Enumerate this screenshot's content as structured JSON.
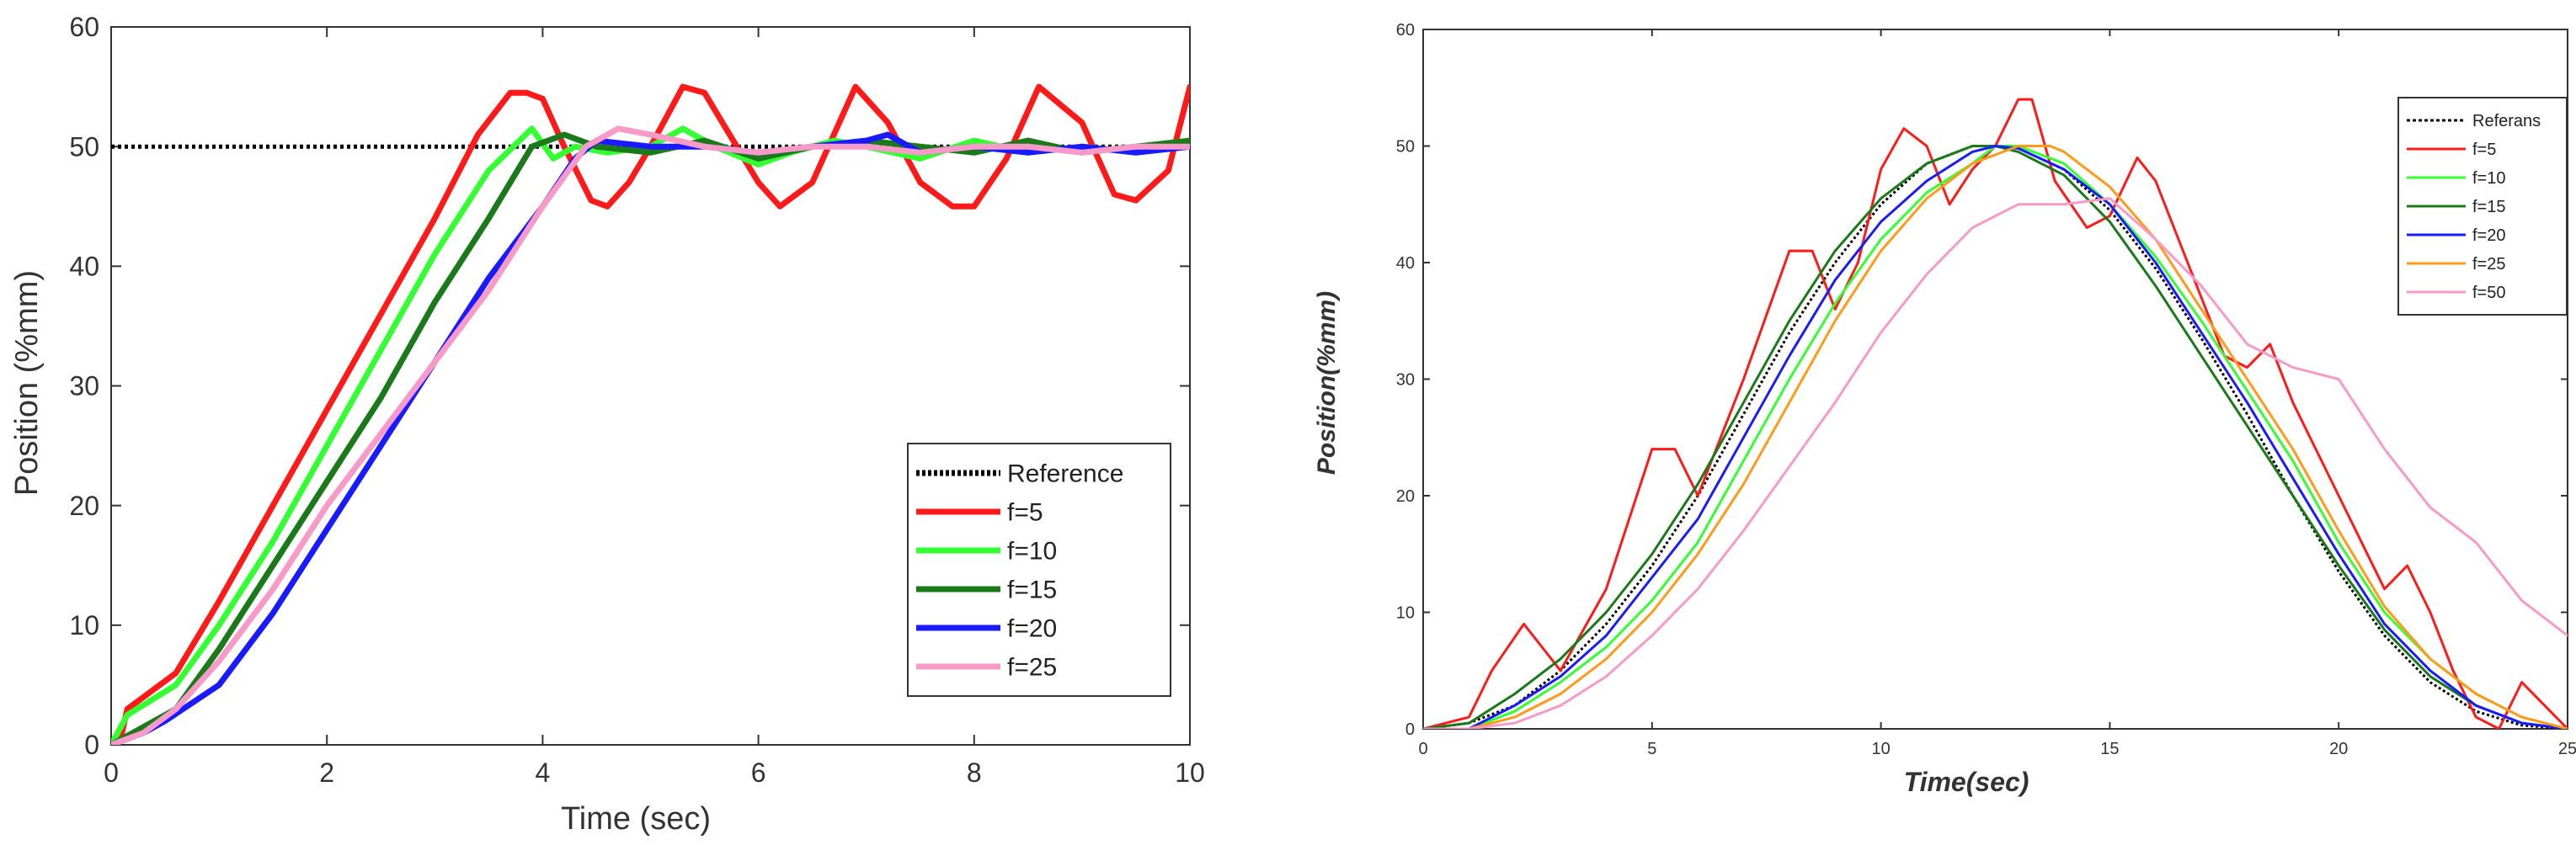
{
  "chart_data": [
    {
      "type": "line",
      "xlabel": "Time (sec)",
      "ylabel": "Position (%mm)",
      "xlim": [
        0,
        10
      ],
      "ylim": [
        0,
        60
      ],
      "xticks": [
        0,
        2,
        4,
        6,
        8,
        10
      ],
      "yticks": [
        0,
        10,
        20,
        30,
        40,
        50,
        60
      ],
      "grid": false,
      "legend": "bottom-right",
      "series": [
        {
          "name": "Reference",
          "color": "#000000",
          "dash": "dotted",
          "x": [
            0,
            10
          ],
          "y": [
            50,
            50
          ]
        },
        {
          "name": "f=5",
          "color": "#ff1a1a",
          "x": [
            0,
            0.1,
            0.15,
            0.6,
            1.0,
            1.5,
            2.0,
            2.5,
            3.0,
            3.4,
            3.7,
            3.85,
            4.0,
            4.2,
            4.45,
            4.6,
            4.8,
            5.0,
            5.3,
            5.5,
            5.8,
            6.0,
            6.2,
            6.5,
            6.9,
            7.2,
            7.5,
            7.8,
            8.0,
            8.3,
            8.6,
            9.0,
            9.3,
            9.5,
            9.8,
            10.0
          ],
          "y": [
            0,
            1,
            3,
            6,
            12,
            20,
            28,
            36,
            44,
            51,
            54.5,
            54.5,
            54,
            50,
            45.5,
            45,
            47,
            50,
            55,
            54.5,
            50,
            47,
            45,
            47,
            55,
            52,
            47,
            45,
            45,
            49,
            55,
            52,
            46,
            45.5,
            48,
            55
          ]
        },
        {
          "name": "f=10",
          "color": "#33ff33",
          "x": [
            0,
            0.15,
            0.6,
            1.0,
            1.5,
            2.0,
            2.5,
            3.0,
            3.5,
            3.9,
            4.1,
            4.3,
            4.6,
            5.0,
            5.3,
            5.6,
            6.0,
            6.3,
            6.7,
            7.0,
            7.5,
            8.0,
            8.5,
            9.0,
            9.5,
            10.0
          ],
          "y": [
            0,
            2.5,
            5,
            10,
            17,
            25,
            33,
            41,
            48,
            51.5,
            49,
            50,
            49.5,
            50,
            51.5,
            50,
            48.5,
            49.5,
            50.5,
            50,
            49,
            50.5,
            49.5,
            50,
            49.5,
            50.5
          ]
        },
        {
          "name": "f=15",
          "color": "#1a7a1a",
          "x": [
            0,
            0.2,
            0.6,
            1.0,
            1.5,
            2.0,
            2.5,
            3.0,
            3.5,
            3.9,
            4.2,
            4.5,
            5.0,
            5.5,
            6.0,
            6.5,
            7.0,
            7.5,
            8.0,
            8.5,
            9.0,
            9.5,
            10.0
          ],
          "y": [
            0,
            1,
            3,
            8,
            15,
            22,
            29,
            37,
            44,
            50,
            51,
            50,
            49.5,
            50.5,
            49,
            50,
            50.5,
            50,
            49.5,
            50.5,
            49.5,
            50,
            50.5
          ]
        },
        {
          "name": "f=20",
          "color": "#1a1aff",
          "x": [
            0,
            0.3,
            0.5,
            1.0,
            1.5,
            2.0,
            2.5,
            3.0,
            3.5,
            4.0,
            4.3,
            4.5,
            5.0,
            5.5,
            6.0,
            6.5,
            7.0,
            7.2,
            7.5,
            8.0,
            8.5,
            9.0,
            9.5,
            10.0
          ],
          "y": [
            0,
            1,
            2,
            5,
            11,
            18,
            25,
            32,
            39,
            45,
            49,
            50.5,
            50,
            50,
            49.5,
            50,
            50.5,
            51,
            49.5,
            50,
            49.5,
            50,
            49.5,
            50
          ]
        },
        {
          "name": "f=25",
          "color": "#f79ac8",
          "x": [
            0,
            0.3,
            0.6,
            1.0,
            1.5,
            2.0,
            2.5,
            3.0,
            3.5,
            4.0,
            4.4,
            4.7,
            5.0,
            5.5,
            6.0,
            6.5,
            7.0,
            7.5,
            8.0,
            8.5,
            9.0,
            9.5,
            10.0
          ],
          "y": [
            0,
            1,
            3,
            7,
            13,
            20,
            26,
            32,
            38,
            45,
            50,
            51.5,
            51,
            50,
            49.5,
            50,
            50,
            49.5,
            50,
            50,
            49.5,
            50,
            50
          ]
        }
      ]
    },
    {
      "type": "line",
      "xlabel": "Time(sec)",
      "ylabel": "Position(%mm)",
      "xlim": [
        0,
        25
      ],
      "ylim": [
        0,
        60
      ],
      "xticks": [
        0,
        5,
        10,
        15,
        20,
        25
      ],
      "yticks": [
        0,
        10,
        20,
        30,
        40,
        50,
        60
      ],
      "grid": false,
      "legend": "top-right",
      "series": [
        {
          "name": "Referans",
          "color": "#000000",
          "dash": "dotted",
          "x": [
            0,
            1,
            2,
            3,
            4,
            5,
            6,
            7,
            8,
            9,
            10,
            11,
            12,
            12.5,
            13,
            14,
            15,
            16,
            17,
            18,
            19,
            20,
            21,
            22,
            23,
            24,
            25
          ],
          "y": [
            0,
            0.5,
            2,
            5,
            9,
            14,
            20,
            27,
            34,
            40,
            45,
            48.5,
            50,
            50,
            49.8,
            48,
            44.5,
            39.5,
            33.5,
            27,
            20,
            13.5,
            8,
            4,
            1.5,
            0.3,
            0
          ]
        },
        {
          "name": "f=5",
          "color": "#ff1a1a",
          "x": [
            0,
            1.0,
            1.5,
            2.2,
            2.6,
            3.0,
            4.0,
            5.0,
            5.5,
            6.0,
            7.0,
            8.0,
            8.5,
            9.0,
            9.5,
            10.0,
            10.5,
            11.0,
            11.5,
            12.0,
            12.5,
            13.0,
            13.3,
            13.8,
            14.5,
            15.0,
            15.6,
            16.0,
            17.0,
            17.5,
            18.0,
            18.5,
            19.0,
            20.0,
            21.0,
            21.5,
            22.0,
            22.5,
            23.0,
            23.5,
            24.0,
            24.5,
            25.0
          ],
          "y": [
            0,
            1,
            5,
            9,
            7,
            5,
            12,
            24,
            24,
            20,
            30,
            41,
            41,
            36,
            40,
            48,
            51.5,
            50,
            45,
            48,
            50,
            54,
            54,
            47,
            43,
            44,
            49,
            47,
            37,
            32,
            31,
            33,
            28,
            20,
            12,
            14,
            10,
            5,
            1,
            0,
            4,
            2,
            0
          ]
        },
        {
          "name": "f=10",
          "color": "#33ff33",
          "x": [
            0,
            1,
            2,
            3,
            4,
            5,
            6,
            7,
            8,
            9,
            10,
            11,
            12,
            12.5,
            13,
            14,
            15,
            16,
            17,
            18,
            19,
            20,
            21,
            22,
            23,
            24,
            25
          ],
          "y": [
            0,
            0,
            1.5,
            4,
            7,
            11,
            16,
            23,
            30,
            36.5,
            42,
            46,
            48.5,
            50,
            50,
            48.5,
            45,
            40.5,
            35,
            29,
            23,
            16,
            10,
            6,
            3,
            1,
            0
          ]
        },
        {
          "name": "f=15",
          "color": "#1a7a1a",
          "x": [
            0,
            1,
            2,
            3,
            4,
            5,
            6,
            7,
            8,
            9,
            10,
            11,
            12,
            12.5,
            13,
            14,
            15,
            16,
            17,
            18,
            19,
            20,
            21,
            22,
            23,
            24,
            25
          ],
          "y": [
            0,
            0.5,
            3,
            6,
            10,
            15,
            21,
            28,
            35,
            41,
            45.5,
            48.5,
            50,
            50,
            49.5,
            47.5,
            43.5,
            38,
            32,
            26,
            20,
            14,
            8.5,
            4.5,
            2,
            0.5,
            0
          ]
        },
        {
          "name": "f=20",
          "color": "#1a1aff",
          "x": [
            0,
            1,
            2,
            3,
            4,
            5,
            6,
            7,
            8,
            9,
            10,
            11,
            12,
            12.5,
            13,
            14,
            15,
            16,
            17,
            18,
            19,
            20,
            21,
            22,
            23,
            24,
            25
          ],
          "y": [
            0,
            0,
            2,
            4.5,
            8,
            13,
            18,
            25,
            32,
            38.5,
            43.5,
            47,
            49.5,
            50,
            49.8,
            48,
            45,
            40,
            34,
            28,
            21.5,
            15,
            9,
            5,
            2,
            0.5,
            0
          ]
        },
        {
          "name": "f=25",
          "color": "#ff9a1a",
          "x": [
            0,
            1,
            2,
            3,
            4,
            5,
            6,
            7,
            8,
            9,
            10,
            11,
            12,
            13,
            13.7,
            14,
            15,
            16,
            17,
            18,
            19,
            20,
            21,
            22,
            23,
            24,
            25
          ],
          "y": [
            0,
            0,
            1,
            3,
            6,
            10,
            15,
            21,
            28,
            35,
            41,
            45.5,
            48.5,
            50,
            50,
            49.5,
            46.5,
            42,
            36,
            30,
            24,
            17,
            10.5,
            6,
            3,
            1,
            0
          ]
        },
        {
          "name": "f=50",
          "color": "#f79ac8",
          "x": [
            0,
            1,
            2,
            3,
            4,
            5,
            6,
            7,
            8,
            9,
            10,
            11,
            12,
            13,
            14,
            15,
            16,
            17,
            18,
            19,
            20,
            21,
            22,
            23,
            24,
            25
          ],
          "y": [
            0,
            0,
            0.5,
            2,
            4.5,
            8,
            12,
            17,
            22.5,
            28,
            34,
            39,
            43,
            45,
            45,
            45.5,
            42,
            38,
            33,
            31,
            30,
            24,
            19,
            16,
            11,
            8
          ]
        }
      ]
    }
  ]
}
